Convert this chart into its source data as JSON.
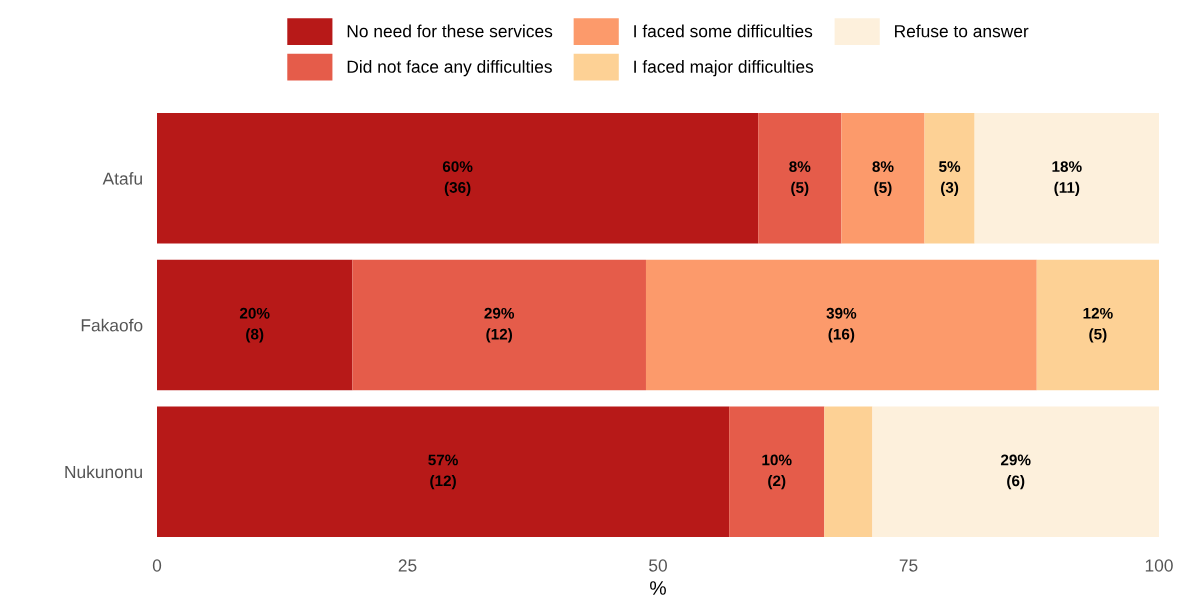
{
  "chart_data": {
    "type": "bar",
    "orientation": "horizontal",
    "stacked": true,
    "categories": [
      "Atafu",
      "Fakaofo",
      "Nukunonu"
    ],
    "xlabel": "%",
    "xlim": [
      0,
      100
    ],
    "xticks": [
      0,
      25,
      50,
      75,
      100
    ],
    "grid": false,
    "legend": "top",
    "series": [
      {
        "name": "No need for these services",
        "color": "#b71918",
        "values": [
          60,
          19.5,
          57.1
        ],
        "value_labels": [
          "60%\n(36)",
          "20%\n(8)",
          "57%\n(12)"
        ]
      },
      {
        "name": "Did not face any difficulties",
        "color": "#e55c4a",
        "values": [
          8.3,
          29.3,
          9.5
        ],
        "value_labels": [
          "8%\n(5)",
          "29%\n(12)",
          "10%\n(2)"
        ]
      },
      {
        "name": "I faced some difficulties",
        "color": "#fc9a6b",
        "values": [
          8.3,
          39.0,
          0
        ],
        "value_labels": [
          "8%\n(5)",
          "39%\n(16)",
          null
        ]
      },
      {
        "name": "I faced major difficulties",
        "color": "#fdd195",
        "values": [
          5,
          12.2,
          4.8
        ],
        "value_labels": [
          "5%\n(3)",
          "12%\n(5)",
          null
        ]
      },
      {
        "name": "Refuse to answer",
        "color": "#fdf0dc",
        "values": [
          18.4,
          0,
          28.6
        ],
        "value_labels": [
          "18%\n(11)",
          null,
          "29%\n(6)"
        ]
      }
    ]
  }
}
